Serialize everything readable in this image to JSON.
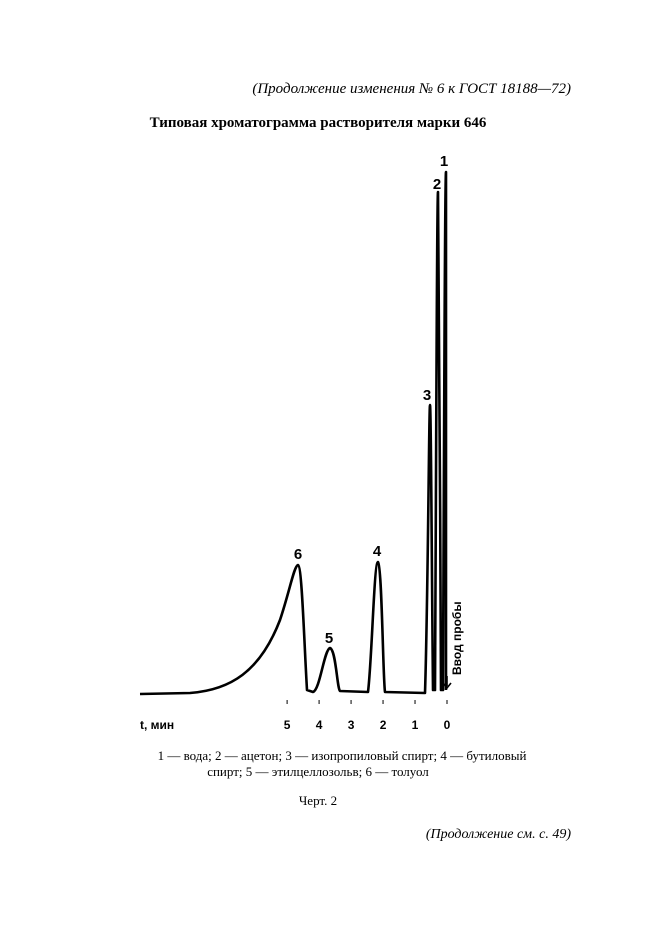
{
  "header": {
    "text": "(Продолжение изменения № 6 к ГОСТ 18188—72)"
  },
  "title": "Типовая хроматограмма растворителя марки  646",
  "figure": {
    "x_axis": {
      "label": "t, мин",
      "xlim": [
        9.6,
        0
      ],
      "xticks": [
        5,
        4,
        3,
        2,
        1,
        0
      ]
    },
    "peak_labels": [
      "1",
      "2",
      "3",
      "4",
      "5",
      "6"
    ],
    "injection_label": "Ввод пробы"
  },
  "legend": {
    "lines": [
      "1 — вода;    2 — ацетон;  3 —  изопропиловый   спирт;   4 — бутиловый",
      "спирт; 5 — этилцеллозольв; 6  — толуол"
    ]
  },
  "caption": "Черт. 2",
  "footer": {
    "text": "(Продолжение см. с. 49)"
  }
}
